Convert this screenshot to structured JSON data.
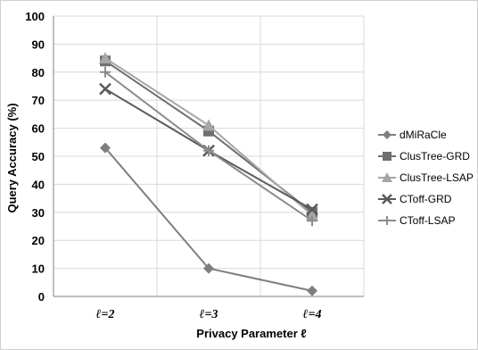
{
  "chart_data": {
    "type": "line",
    "categories": [
      "ℓ=2",
      "ℓ=3",
      "ℓ=4"
    ],
    "xlabel": "Privacy Parameter ℓ",
    "ylabel": "Query Accuracy (%)",
    "ylim": [
      0,
      100
    ],
    "ytick_step": 10,
    "grid": true,
    "legend_position": "right",
    "series": [
      {
        "name": "dMiRaCle",
        "values": [
          53,
          10,
          2
        ],
        "color": "#7f7f7f",
        "marker": "diamond"
      },
      {
        "name": "ClusTree-GRD",
        "values": [
          84,
          59,
          30
        ],
        "color": "#6f6f6f",
        "marker": "square"
      },
      {
        "name": "ClusTree-LSAP",
        "values": [
          85,
          61,
          29
        ],
        "color": "#a6a6a6",
        "marker": "triangle"
      },
      {
        "name": "CToff-GRD",
        "values": [
          74,
          52,
          31
        ],
        "color": "#5a5a5a",
        "marker": "x"
      },
      {
        "name": "CToff-LSAP",
        "values": [
          80,
          52,
          27
        ],
        "color": "#8c8c8c",
        "marker": "plus"
      }
    ]
  }
}
